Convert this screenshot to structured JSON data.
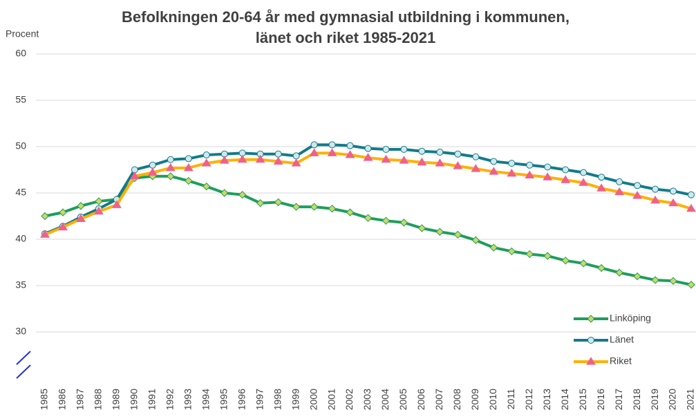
{
  "chart_data": {
    "type": "line",
    "title": [
      "Befolkningen 20-64 år med gymnasial utbildning i kommunen,",
      "länet och riket 1985-2021"
    ],
    "y_label": "Procent",
    "categories": [
      "1985",
      "1986",
      "1987",
      "1988",
      "1989",
      "1990",
      "1991",
      "1992",
      "1993",
      "1994",
      "1995",
      "1996",
      "1997",
      "1998",
      "1999",
      "2000",
      "2001",
      "2002",
      "2003",
      "2004",
      "2005",
      "2006",
      "2007",
      "2008",
      "2009",
      "2010",
      "2011",
      "2012",
      "2013",
      "2014",
      "2015",
      "2016",
      "2017",
      "2018",
      "2019",
      "2020",
      "2021"
    ],
    "series": [
      {
        "name": "Linköping",
        "color": "#1e9e5a",
        "marker": "diamond",
        "marker_color": "#c9d86a",
        "values": [
          42.5,
          42.9,
          43.6,
          44.1,
          44.3,
          46.6,
          46.8,
          46.8,
          46.3,
          45.7,
          45.0,
          44.8,
          43.9,
          44.0,
          43.5,
          43.5,
          43.3,
          42.9,
          42.3,
          42.0,
          41.8,
          41.2,
          40.8,
          40.5,
          39.9,
          39.1,
          38.7,
          38.4,
          38.2,
          37.7,
          37.4,
          36.9,
          36.4,
          36.0,
          35.6,
          35.5,
          35.1
        ]
      },
      {
        "name": "Länet",
        "color": "#137a8a",
        "marker": "circle",
        "marker_color": "#cfe9eb",
        "values": [
          40.6,
          41.4,
          42.4,
          43.3,
          44.3,
          47.5,
          48.0,
          48.6,
          48.7,
          49.1,
          49.2,
          49.3,
          49.2,
          49.2,
          49.0,
          50.2,
          50.2,
          50.1,
          49.8,
          49.7,
          49.7,
          49.5,
          49.4,
          49.2,
          48.9,
          48.4,
          48.2,
          48.0,
          47.8,
          47.5,
          47.2,
          46.7,
          46.2,
          45.8,
          45.4,
          45.2,
          44.8
        ]
      },
      {
        "name": "Riket",
        "color": "#ffb000",
        "marker": "triangle",
        "marker_color": "#f0608a",
        "values": [
          40.5,
          41.3,
          42.2,
          43.0,
          43.7,
          46.8,
          47.2,
          47.7,
          47.7,
          48.2,
          48.5,
          48.6,
          48.6,
          48.4,
          48.2,
          49.3,
          49.3,
          49.1,
          48.8,
          48.6,
          48.5,
          48.3,
          48.2,
          47.9,
          47.6,
          47.3,
          47.1,
          46.9,
          46.7,
          46.4,
          46.1,
          45.5,
          45.1,
          44.7,
          44.2,
          43.9,
          43.3
        ]
      }
    ],
    "ylim": [
      25,
      60
    ],
    "yticks": [
      30,
      35,
      40,
      45,
      50,
      55,
      60
    ],
    "grid": true,
    "legend": "bottom-right"
  }
}
